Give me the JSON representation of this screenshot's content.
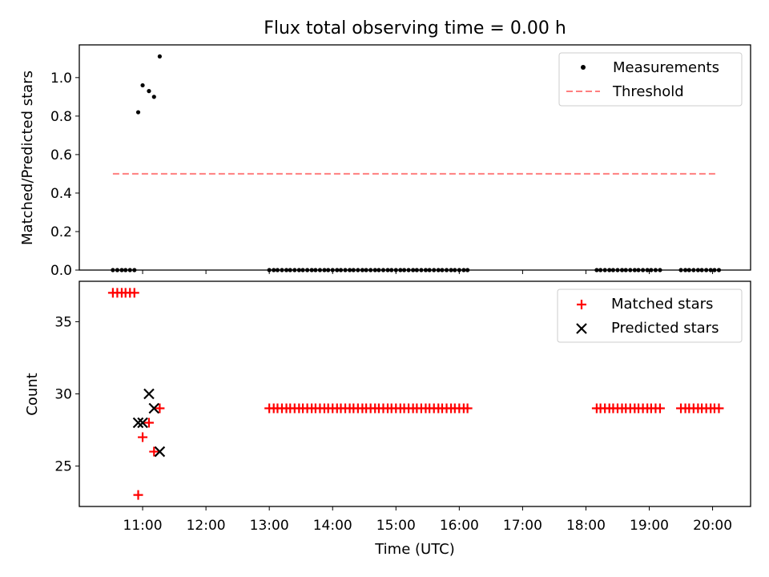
{
  "chart_data": [
    {
      "type": "scatter",
      "title": "Flux total observing time = 0.00 h",
      "ylabel": "Matched/Predicted stars",
      "xlabel": "",
      "xlim": [
        10.0,
        20.6
      ],
      "ylim": [
        0.0,
        1.17
      ],
      "yticks": [
        0.0,
        0.2,
        0.4,
        0.6,
        0.8,
        1.0
      ],
      "ytick_labels": [
        "0.0",
        "0.2",
        "0.4",
        "0.6",
        "0.8",
        "1.0"
      ],
      "legend": {
        "placement": "upper-right",
        "entries": [
          "Measurements",
          "Threshold"
        ]
      },
      "series": [
        {
          "name": "Measurements",
          "marker": "dot",
          "color": "#000000",
          "x": [
            10.53,
            10.6,
            10.67,
            10.73,
            10.8,
            10.87,
            10.93,
            11.0,
            11.1,
            11.18,
            11.27,
            13.0,
            13.07,
            13.13,
            13.2,
            13.27,
            13.33,
            13.4,
            13.47,
            13.53,
            13.6,
            13.67,
            13.73,
            13.8,
            13.87,
            13.93,
            14.0,
            14.07,
            14.13,
            14.2,
            14.27,
            14.33,
            14.4,
            14.47,
            14.53,
            14.6,
            14.67,
            14.73,
            14.8,
            14.87,
            14.93,
            15.0,
            15.07,
            15.13,
            15.2,
            15.27,
            15.33,
            15.4,
            15.47,
            15.53,
            15.6,
            15.67,
            15.73,
            15.8,
            15.87,
            15.93,
            16.0,
            16.07,
            16.13,
            18.17,
            18.23,
            18.3,
            18.37,
            18.43,
            18.5,
            18.57,
            18.63,
            18.7,
            18.77,
            18.83,
            18.9,
            18.97,
            19.03,
            19.1,
            19.17,
            19.5,
            19.57,
            19.63,
            19.7,
            19.77,
            19.83,
            19.9,
            19.97,
            20.03,
            20.1
          ],
          "y": [
            0,
            0,
            0,
            0,
            0,
            0,
            0.82,
            0.96,
            0.93,
            0.9,
            1.11,
            0,
            0,
            0,
            0,
            0,
            0,
            0,
            0,
            0,
            0,
            0,
            0,
            0,
            0,
            0,
            0,
            0,
            0,
            0,
            0,
            0,
            0,
            0,
            0,
            0,
            0,
            0,
            0,
            0,
            0,
            0,
            0,
            0,
            0,
            0,
            0,
            0,
            0,
            0,
            0,
            0,
            0,
            0,
            0,
            0,
            0,
            0,
            0,
            0,
            0,
            0,
            0,
            0,
            0,
            0,
            0,
            0,
            0,
            0,
            0,
            0,
            0,
            0,
            0,
            0,
            0,
            0,
            0,
            0,
            0,
            0,
            0,
            0,
            0
          ]
        },
        {
          "name": "Threshold",
          "style": "dashed-line",
          "color": "#ff7f7f",
          "x": [
            10.53,
            20.05
          ],
          "y": [
            0.5,
            0.5
          ]
        }
      ]
    },
    {
      "type": "scatter",
      "title": "",
      "ylabel": "Count",
      "xlabel": "Time (UTC)",
      "xlim": [
        10.0,
        20.6
      ],
      "ylim": [
        22.2,
        37.8
      ],
      "yticks": [
        25,
        30,
        35
      ],
      "ytick_labels": [
        "25",
        "30",
        "35"
      ],
      "xticks": [
        11,
        12,
        13,
        14,
        15,
        16,
        17,
        18,
        19,
        20
      ],
      "xtick_labels": [
        "11:00",
        "12:00",
        "13:00",
        "14:00",
        "15:00",
        "16:00",
        "17:00",
        "18:00",
        "19:00",
        "20:00"
      ],
      "legend": {
        "placement": "upper-right",
        "entries": [
          "Matched stars",
          "Predicted stars"
        ]
      },
      "series": [
        {
          "name": "Matched stars",
          "marker": "plus",
          "color": "#ff0000",
          "x": [
            10.53,
            10.6,
            10.67,
            10.73,
            10.8,
            10.87,
            10.93,
            11.0,
            11.1,
            11.18,
            11.27,
            13.0,
            13.07,
            13.13,
            13.2,
            13.27,
            13.33,
            13.4,
            13.47,
            13.53,
            13.6,
            13.67,
            13.73,
            13.8,
            13.87,
            13.93,
            14.0,
            14.07,
            14.13,
            14.2,
            14.27,
            14.33,
            14.4,
            14.47,
            14.53,
            14.6,
            14.67,
            14.73,
            14.8,
            14.87,
            14.93,
            15.0,
            15.07,
            15.13,
            15.2,
            15.27,
            15.33,
            15.4,
            15.47,
            15.53,
            15.6,
            15.67,
            15.73,
            15.8,
            15.87,
            15.93,
            16.0,
            16.07,
            16.13,
            18.17,
            18.23,
            18.3,
            18.37,
            18.43,
            18.5,
            18.57,
            18.63,
            18.7,
            18.77,
            18.83,
            18.9,
            18.97,
            19.03,
            19.1,
            19.17,
            19.5,
            19.57,
            19.63,
            19.7,
            19.77,
            19.83,
            19.9,
            19.97,
            20.03,
            20.1
          ],
          "y": [
            37,
            37,
            37,
            37,
            37,
            37,
            23,
            27,
            28,
            26,
            29,
            29,
            29,
            29,
            29,
            29,
            29,
            29,
            29,
            29,
            29,
            29,
            29,
            29,
            29,
            29,
            29,
            29,
            29,
            29,
            29,
            29,
            29,
            29,
            29,
            29,
            29,
            29,
            29,
            29,
            29,
            29,
            29,
            29,
            29,
            29,
            29,
            29,
            29,
            29,
            29,
            29,
            29,
            29,
            29,
            29,
            29,
            29,
            29,
            29,
            29,
            29,
            29,
            29,
            29,
            29,
            29,
            29,
            29,
            29,
            29,
            29,
            29,
            29,
            29,
            29,
            29,
            29,
            29,
            29,
            29,
            29,
            29,
            29,
            29
          ]
        },
        {
          "name": "Predicted stars",
          "marker": "x",
          "color": "#000000",
          "x": [
            10.93,
            11.0,
            11.1,
            11.18,
            11.27
          ],
          "y": [
            28,
            28,
            30,
            29,
            26
          ]
        }
      ]
    }
  ]
}
